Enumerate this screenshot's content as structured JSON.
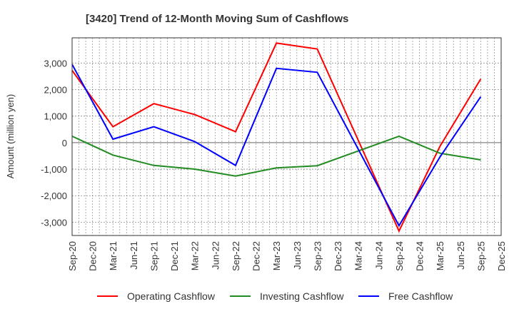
{
  "chart_data": {
    "type": "line",
    "title": "[3420]  Trend of 12-Month Moving Sum of Cashflows",
    "xlabel": "",
    "ylabel": "Amount (million yen)",
    "ylim": [
      -3500,
      3950
    ],
    "yticks": [
      3000,
      2000,
      1000,
      0,
      -1000,
      -2000,
      -3000
    ],
    "ytick_labels": [
      "3,000",
      "2,000",
      "1,000",
      "0",
      "-1,000",
      "-2,000",
      "-3,000"
    ],
    "x_tick_labels": [
      "Sep-20",
      "Dec-20",
      "Mar-21",
      "Jun-21",
      "Sep-21",
      "Dec-21",
      "Mar-22",
      "Jun-22",
      "Sep-22",
      "Dec-22",
      "Mar-23",
      "Jun-23",
      "Sep-23",
      "Dec-23",
      "Mar-24",
      "Jun-24",
      "Sep-24",
      "Dec-24",
      "Mar-25",
      "Jun-25",
      "Sep-25",
      "Dec-25"
    ],
    "x": [
      "Sep-20",
      "Mar-21",
      "Sep-21",
      "Mar-22",
      "Sep-22",
      "Mar-23",
      "Sep-23",
      "Sep-24",
      "Mar-25",
      "Sep-25"
    ],
    "grid": true,
    "legend_position": "bottom",
    "series": [
      {
        "name": "Operating Cashflow",
        "color": "#ff0000",
        "values": [
          2720,
          600,
          1470,
          1060,
          410,
          3750,
          3530,
          -3330,
          -150,
          2400
        ]
      },
      {
        "name": "Investing Cashflow",
        "color": "#228b22",
        "values": [
          240,
          -470,
          -860,
          -1000,
          -1260,
          -950,
          -870,
          240,
          -400,
          -650
        ]
      },
      {
        "name": "Free Cashflow",
        "color": "#0000ff",
        "values": [
          2950,
          130,
          600,
          40,
          -860,
          2800,
          2650,
          -3130,
          -550,
          1730
        ]
      }
    ]
  }
}
